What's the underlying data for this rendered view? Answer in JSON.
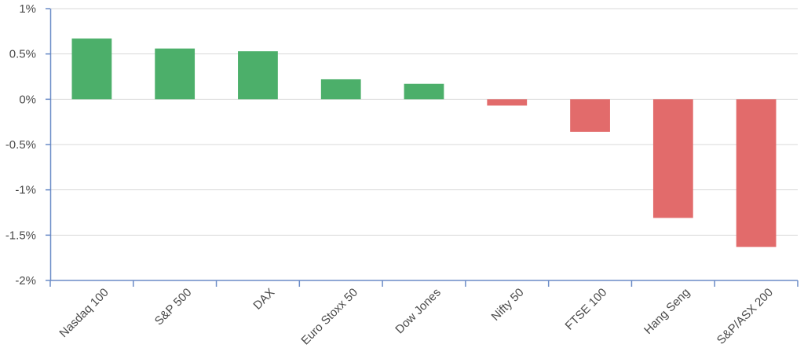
{
  "chart_data": {
    "type": "bar",
    "title": "",
    "xlabel": "",
    "ylabel": "",
    "categories": [
      "Nasdaq 100",
      "S&P 500",
      "DAX",
      "Euro Stoxx 50",
      "Dow Jones",
      "Nifty 50",
      "FTSE 100",
      "Hang Seng",
      "S&P/ASX 200"
    ],
    "values": [
      0.67,
      0.56,
      0.53,
      0.22,
      0.17,
      -0.07,
      -0.36,
      -1.31,
      -1.63
    ],
    "value_unit": "%",
    "ylim": [
      -2,
      1
    ],
    "yticks": [
      1,
      0.5,
      0,
      -0.5,
      -1,
      -1.5,
      -2
    ],
    "ytick_labels": [
      "1%",
      "0.5%",
      "0%",
      "-0.5%",
      "-1%",
      "-1.5%",
      "-2%"
    ],
    "grid": true,
    "legend": "none",
    "colors": {
      "positive": "#4caf6a",
      "negative": "#e26b6b",
      "axis": "#6b8cc7",
      "grid": "#d9d9d9"
    }
  }
}
